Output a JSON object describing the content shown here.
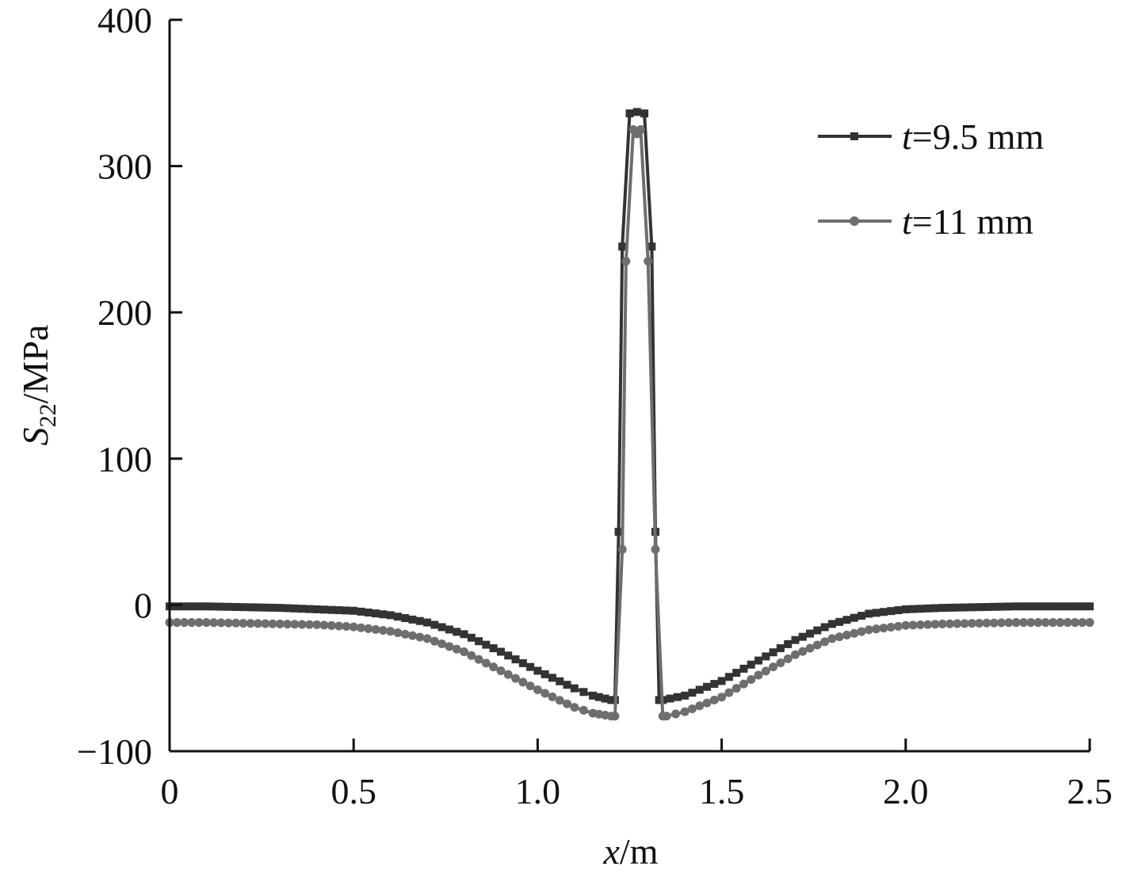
{
  "chart_data": {
    "type": "line",
    "title": "",
    "xlabel": {
      "var": "x",
      "unit": "/m"
    },
    "ylabel": {
      "var": "S",
      "sub": "22",
      "unit": "/MPa"
    },
    "xlim": [
      0,
      2.5
    ],
    "ylim": [
      -100,
      400
    ],
    "xticks": [
      {
        "value": 0,
        "label": "0"
      },
      {
        "value": 0.5,
        "label": "0.5"
      },
      {
        "value": 1.0,
        "label": "1.0"
      },
      {
        "value": 1.5,
        "label": "1.5"
      },
      {
        "value": 2.0,
        "label": "2.0"
      },
      {
        "value": 2.5,
        "label": "2.5"
      }
    ],
    "yticks": [
      {
        "value": -100,
        "label": "−100"
      },
      {
        "value": 0,
        "label": "0"
      },
      {
        "value": 100,
        "label": "100"
      },
      {
        "value": 200,
        "label": "200"
      },
      {
        "value": 300,
        "label": "300"
      },
      {
        "value": 400,
        "label": "400"
      }
    ],
    "grid": false,
    "legend_position": "top-right",
    "series": [
      {
        "name": "t=9.5 mm",
        "name_var": "t",
        "name_rest": "=9.5 mm",
        "marker": "square",
        "color": "#333333",
        "points": [
          [
            0,
            -1
          ],
          [
            0.1,
            -1
          ],
          [
            0.2,
            -1.5
          ],
          [
            0.3,
            -2
          ],
          [
            0.4,
            -3
          ],
          [
            0.5,
            -4
          ],
          [
            0.6,
            -7
          ],
          [
            0.7,
            -12
          ],
          [
            0.8,
            -20
          ],
          [
            0.9,
            -32
          ],
          [
            1.0,
            -45
          ],
          [
            1.1,
            -57
          ],
          [
            1.15,
            -62
          ],
          [
            1.2,
            -65
          ],
          [
            1.21,
            -65
          ],
          [
            1.22,
            50
          ],
          [
            1.23,
            245
          ],
          [
            1.25,
            336
          ],
          [
            1.27,
            337
          ],
          [
            1.29,
            336
          ],
          [
            1.31,
            245
          ],
          [
            1.32,
            50
          ],
          [
            1.33,
            -65
          ],
          [
            1.34,
            -65
          ],
          [
            1.4,
            -62
          ],
          [
            1.5,
            -52
          ],
          [
            1.6,
            -38
          ],
          [
            1.7,
            -24
          ],
          [
            1.8,
            -13
          ],
          [
            1.9,
            -6
          ],
          [
            2.0,
            -3
          ],
          [
            2.1,
            -2
          ],
          [
            2.2,
            -1.5
          ],
          [
            2.3,
            -1
          ],
          [
            2.4,
            -1
          ],
          [
            2.5,
            -1
          ]
        ]
      },
      {
        "name": "t=11 mm",
        "name_var": "t",
        "name_rest": "=11 mm",
        "marker": "circle",
        "color": "#6e6e6e",
        "points": [
          [
            0,
            -12
          ],
          [
            0.1,
            -12
          ],
          [
            0.2,
            -12.5
          ],
          [
            0.3,
            -13
          ],
          [
            0.4,
            -13.5
          ],
          [
            0.5,
            -15
          ],
          [
            0.6,
            -18
          ],
          [
            0.7,
            -23
          ],
          [
            0.8,
            -32
          ],
          [
            0.9,
            -45
          ],
          [
            1.0,
            -58
          ],
          [
            1.1,
            -70
          ],
          [
            1.15,
            -74
          ],
          [
            1.2,
            -76
          ],
          [
            1.21,
            -76
          ],
          [
            1.23,
            38
          ],
          [
            1.24,
            235
          ],
          [
            1.26,
            325
          ],
          [
            1.27,
            322
          ],
          [
            1.28,
            325
          ],
          [
            1.3,
            235
          ],
          [
            1.32,
            38
          ],
          [
            1.34,
            -76
          ],
          [
            1.35,
            -76
          ],
          [
            1.4,
            -73
          ],
          [
            1.5,
            -63
          ],
          [
            1.6,
            -48
          ],
          [
            1.7,
            -34
          ],
          [
            1.8,
            -23
          ],
          [
            1.9,
            -17
          ],
          [
            2.0,
            -14
          ],
          [
            2.1,
            -13
          ],
          [
            2.2,
            -12.5
          ],
          [
            2.3,
            -12
          ],
          [
            2.4,
            -12
          ],
          [
            2.5,
            -12
          ]
        ]
      }
    ]
  }
}
